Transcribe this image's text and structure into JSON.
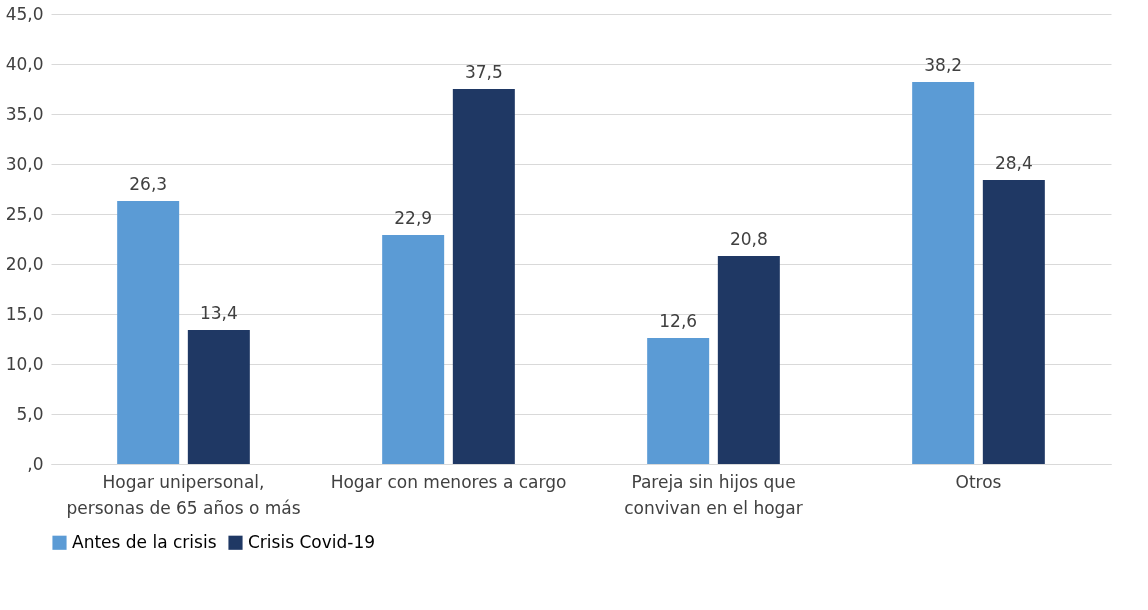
{
  "chart_data": {
    "type": "bar",
    "categories": [
      "Hogar unipersonal,\npersonas de 65 años o más",
      "Hogar con menores a cargo",
      "Pareja sin hijos que\nconvivan en el hogar",
      "Otros"
    ],
    "series": [
      {
        "name": "Antes de la crisis",
        "color": "#5b9bd5",
        "values": [
          26.3,
          22.9,
          12.6,
          38.2
        ],
        "value_labels": [
          "26,3",
          "22,9",
          "12,6",
          "38,2"
        ]
      },
      {
        "name": "Crisis Covid-19",
        "color": "#1f3864",
        "values": [
          13.4,
          37.5,
          20.8,
          28.4
        ],
        "value_labels": [
          "13,4",
          "37,5",
          "20,8",
          "28,4"
        ]
      }
    ],
    "ylim": [
      0,
      45
    ],
    "yticks": [
      {
        "value": 0,
        "label": ",0"
      },
      {
        "value": 5,
        "label": "5,0"
      },
      {
        "value": 10,
        "label": "10,0"
      },
      {
        "value": 15,
        "label": "15,0"
      },
      {
        "value": 20,
        "label": "20,0"
      },
      {
        "value": 25,
        "label": "25,0"
      },
      {
        "value": 30,
        "label": "30,0"
      },
      {
        "value": 35,
        "label": "35,0"
      },
      {
        "value": 40,
        "label": "40,0"
      },
      {
        "value": 45,
        "label": "45,0"
      }
    ],
    "grid": "y",
    "legend": "bottom"
  }
}
